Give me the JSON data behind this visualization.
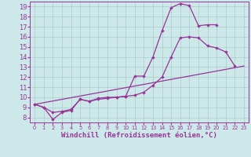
{
  "bg_color": "#cce8e8",
  "grid_color": "#aacccc",
  "line_color": "#993399",
  "marker": "D",
  "markersize": 2.2,
  "linewidth": 0.9,
  "xlabel": "Windchill (Refroidissement éolien,°C)",
  "xlabel_fontsize": 6.5,
  "tick_fontsize": 6,
  "xlim": [
    -0.5,
    23.5
  ],
  "ylim": [
    7.5,
    19.5
  ],
  "yticks": [
    8,
    9,
    10,
    11,
    12,
    13,
    14,
    15,
    16,
    17,
    18,
    19
  ],
  "xticks": [
    0,
    1,
    2,
    3,
    4,
    5,
    6,
    7,
    8,
    9,
    10,
    11,
    12,
    13,
    14,
    15,
    16,
    17,
    18,
    19,
    20,
    21,
    22,
    23
  ],
  "line1_x": [
    0,
    1,
    2,
    3,
    4,
    5,
    6,
    7,
    8,
    9,
    10,
    11,
    12,
    13,
    14,
    15,
    16,
    17,
    18,
    19,
    20
  ],
  "line1_y": [
    9.3,
    9.0,
    7.8,
    8.5,
    8.7,
    9.8,
    9.6,
    9.8,
    9.9,
    10.0,
    10.1,
    12.1,
    12.1,
    14.0,
    16.6,
    18.9,
    19.3,
    19.1,
    17.1,
    17.2,
    17.2
  ],
  "line2_x": [
    0,
    1,
    2,
    3,
    4,
    5,
    6,
    7,
    8,
    9,
    10,
    11,
    12,
    13,
    14,
    15,
    16,
    17,
    18,
    19,
    20,
    21,
    22
  ],
  "line2_y": [
    9.3,
    9.0,
    8.5,
    8.6,
    8.8,
    9.8,
    9.6,
    9.9,
    10.0,
    10.0,
    10.1,
    10.2,
    10.5,
    11.2,
    12.0,
    14.0,
    15.9,
    16.0,
    15.9,
    15.1,
    14.9,
    14.5,
    13.1
  ],
  "line3_x": [
    0,
    23
  ],
  "line3_y": [
    9.3,
    13.1
  ]
}
